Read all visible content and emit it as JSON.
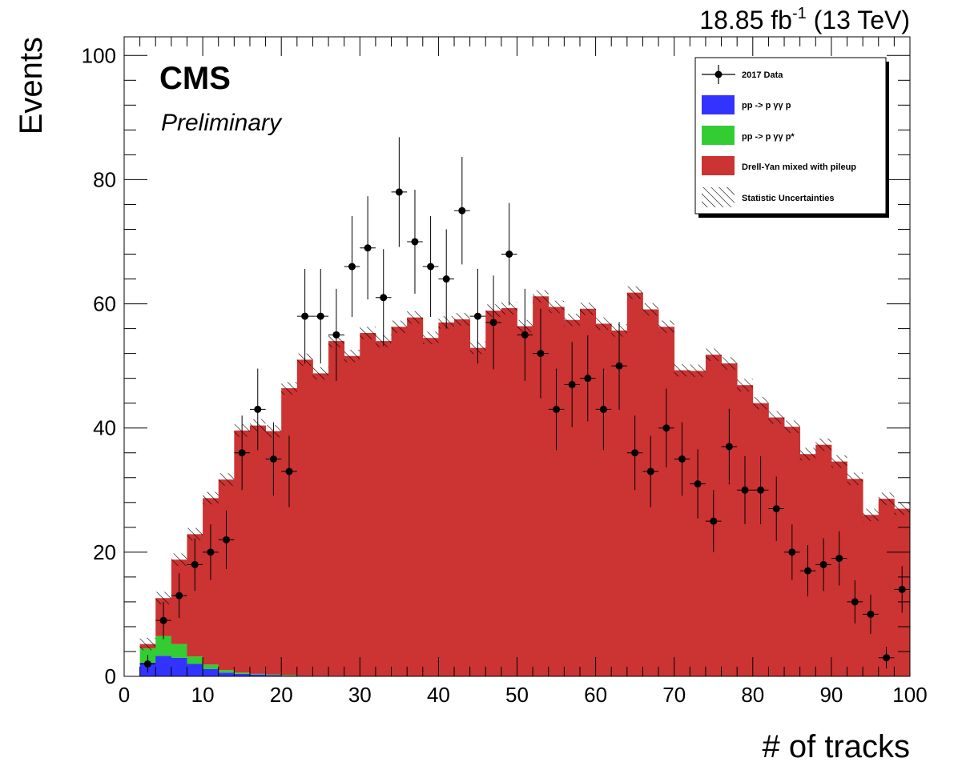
{
  "chart_data": {
    "type": "bar",
    "title": "",
    "xlabel": "# of tracks",
    "ylabel": "Events",
    "xlim": [
      0,
      100
    ],
    "ylim": [
      0,
      103
    ],
    "x_ticks": [
      "0",
      "10",
      "20",
      "30",
      "40",
      "50",
      "60",
      "70",
      "80",
      "90",
      "100"
    ],
    "y_ticks": [
      "0",
      "20",
      "40",
      "60",
      "80",
      "100"
    ],
    "lumi_label": {
      "main": "18.85 fb",
      "sup": "-1",
      "tail": " (13 TeV)"
    },
    "cms_label": "CMS",
    "prelim_label": "Preliminary",
    "bin_edges_start": 2,
    "bin_width": 2,
    "legend": {
      "placement": "top-right",
      "entries": [
        {
          "key": "data",
          "label": "2017 Data",
          "style": "marker"
        },
        {
          "key": "exclusive",
          "label": "pp -> p  γγ p",
          "style": "fill",
          "color": "#3333ff"
        },
        {
          "key": "dissociative",
          "label": "pp -> p  γγ p*",
          "style": "fill",
          "color": "#33cc33"
        },
        {
          "key": "dy",
          "label": "Drell-Yan mixed with pileup",
          "style": "fill",
          "color": "#cc3333"
        },
        {
          "key": "unc",
          "label": "Statistic Uncertainties",
          "style": "hatch"
        }
      ]
    },
    "series": [
      {
        "name": "pp -> p  γγ p",
        "color": "#3333ff",
        "values": [
          2.2,
          3.3,
          3.0,
          2.0,
          1.2,
          0.6,
          0.4,
          0.3,
          0.2,
          0.1,
          0.1,
          0.1,
          0.1,
          0,
          0,
          0,
          0,
          0,
          0,
          0,
          0,
          0,
          0,
          0,
          0,
          0,
          0,
          0,
          0,
          0,
          0,
          0,
          0,
          0,
          0,
          0,
          0,
          0,
          0,
          0,
          0,
          0,
          0,
          0,
          0,
          0,
          0,
          0,
          0
        ]
      },
      {
        "name": "pp -> p  γγ p*",
        "color": "#33cc33",
        "values": [
          2.3,
          3.2,
          2.2,
          1.2,
          0.7,
          0.4,
          0.2,
          0.1,
          0.1,
          0.1,
          0,
          0,
          0,
          0,
          0,
          0,
          0,
          0,
          0,
          0,
          0,
          0,
          0,
          0,
          0,
          0,
          0,
          0,
          0,
          0,
          0,
          0,
          0,
          0,
          0,
          0,
          0,
          0,
          0,
          0,
          0,
          0,
          0,
          0,
          0,
          0,
          0,
          0,
          0
        ]
      },
      {
        "name": "Drell-Yan mixed with pileup",
        "color": "#cc3333",
        "values": [
          0.7,
          6.1,
          13.6,
          19.7,
          26.8,
          30.7,
          39.0,
          40.0,
          39.2,
          46.2,
          50.9,
          48.7,
          53.9,
          51.6,
          55.3,
          54.0,
          56.3,
          57.8,
          54.5,
          57.0,
          57.5,
          52.9,
          58.9,
          59.3,
          56.4,
          61.2,
          59.5,
          57.4,
          59.2,
          56.8,
          55.7,
          61.8,
          59.1,
          56.3,
          49.3,
          49.2,
          51.8,
          50.4,
          46.9,
          44.0,
          41.7,
          40.2,
          35.8,
          37.3,
          34.6,
          31.8,
          26.0,
          28.6,
          27.0
        ]
      }
    ],
    "stat_unc": 1.0,
    "data": {
      "name": "2017 Data",
      "x": [
        3,
        5,
        7,
        9,
        11,
        13,
        15,
        17,
        19,
        21,
        23,
        25,
        27,
        29,
        31,
        33,
        35,
        37,
        39,
        41,
        43,
        45,
        47,
        49,
        51,
        53,
        55,
        57,
        59,
        61,
        63,
        65,
        67,
        69,
        71,
        73,
        75,
        77,
        79,
        81,
        83,
        85,
        87,
        89,
        91,
        93,
        95,
        97,
        99
      ],
      "y": [
        2,
        9,
        13,
        18,
        20,
        22,
        36,
        43,
        35,
        33,
        58,
        58,
        55,
        66,
        69,
        61,
        78,
        70,
        66,
        64,
        75,
        58,
        57,
        68,
        55,
        52,
        43,
        47,
        48,
        43,
        50,
        36,
        33,
        40,
        35,
        31,
        25,
        37,
        30,
        30,
        27,
        20,
        17,
        18,
        19,
        12,
        10,
        3,
        14
      ]
    }
  }
}
